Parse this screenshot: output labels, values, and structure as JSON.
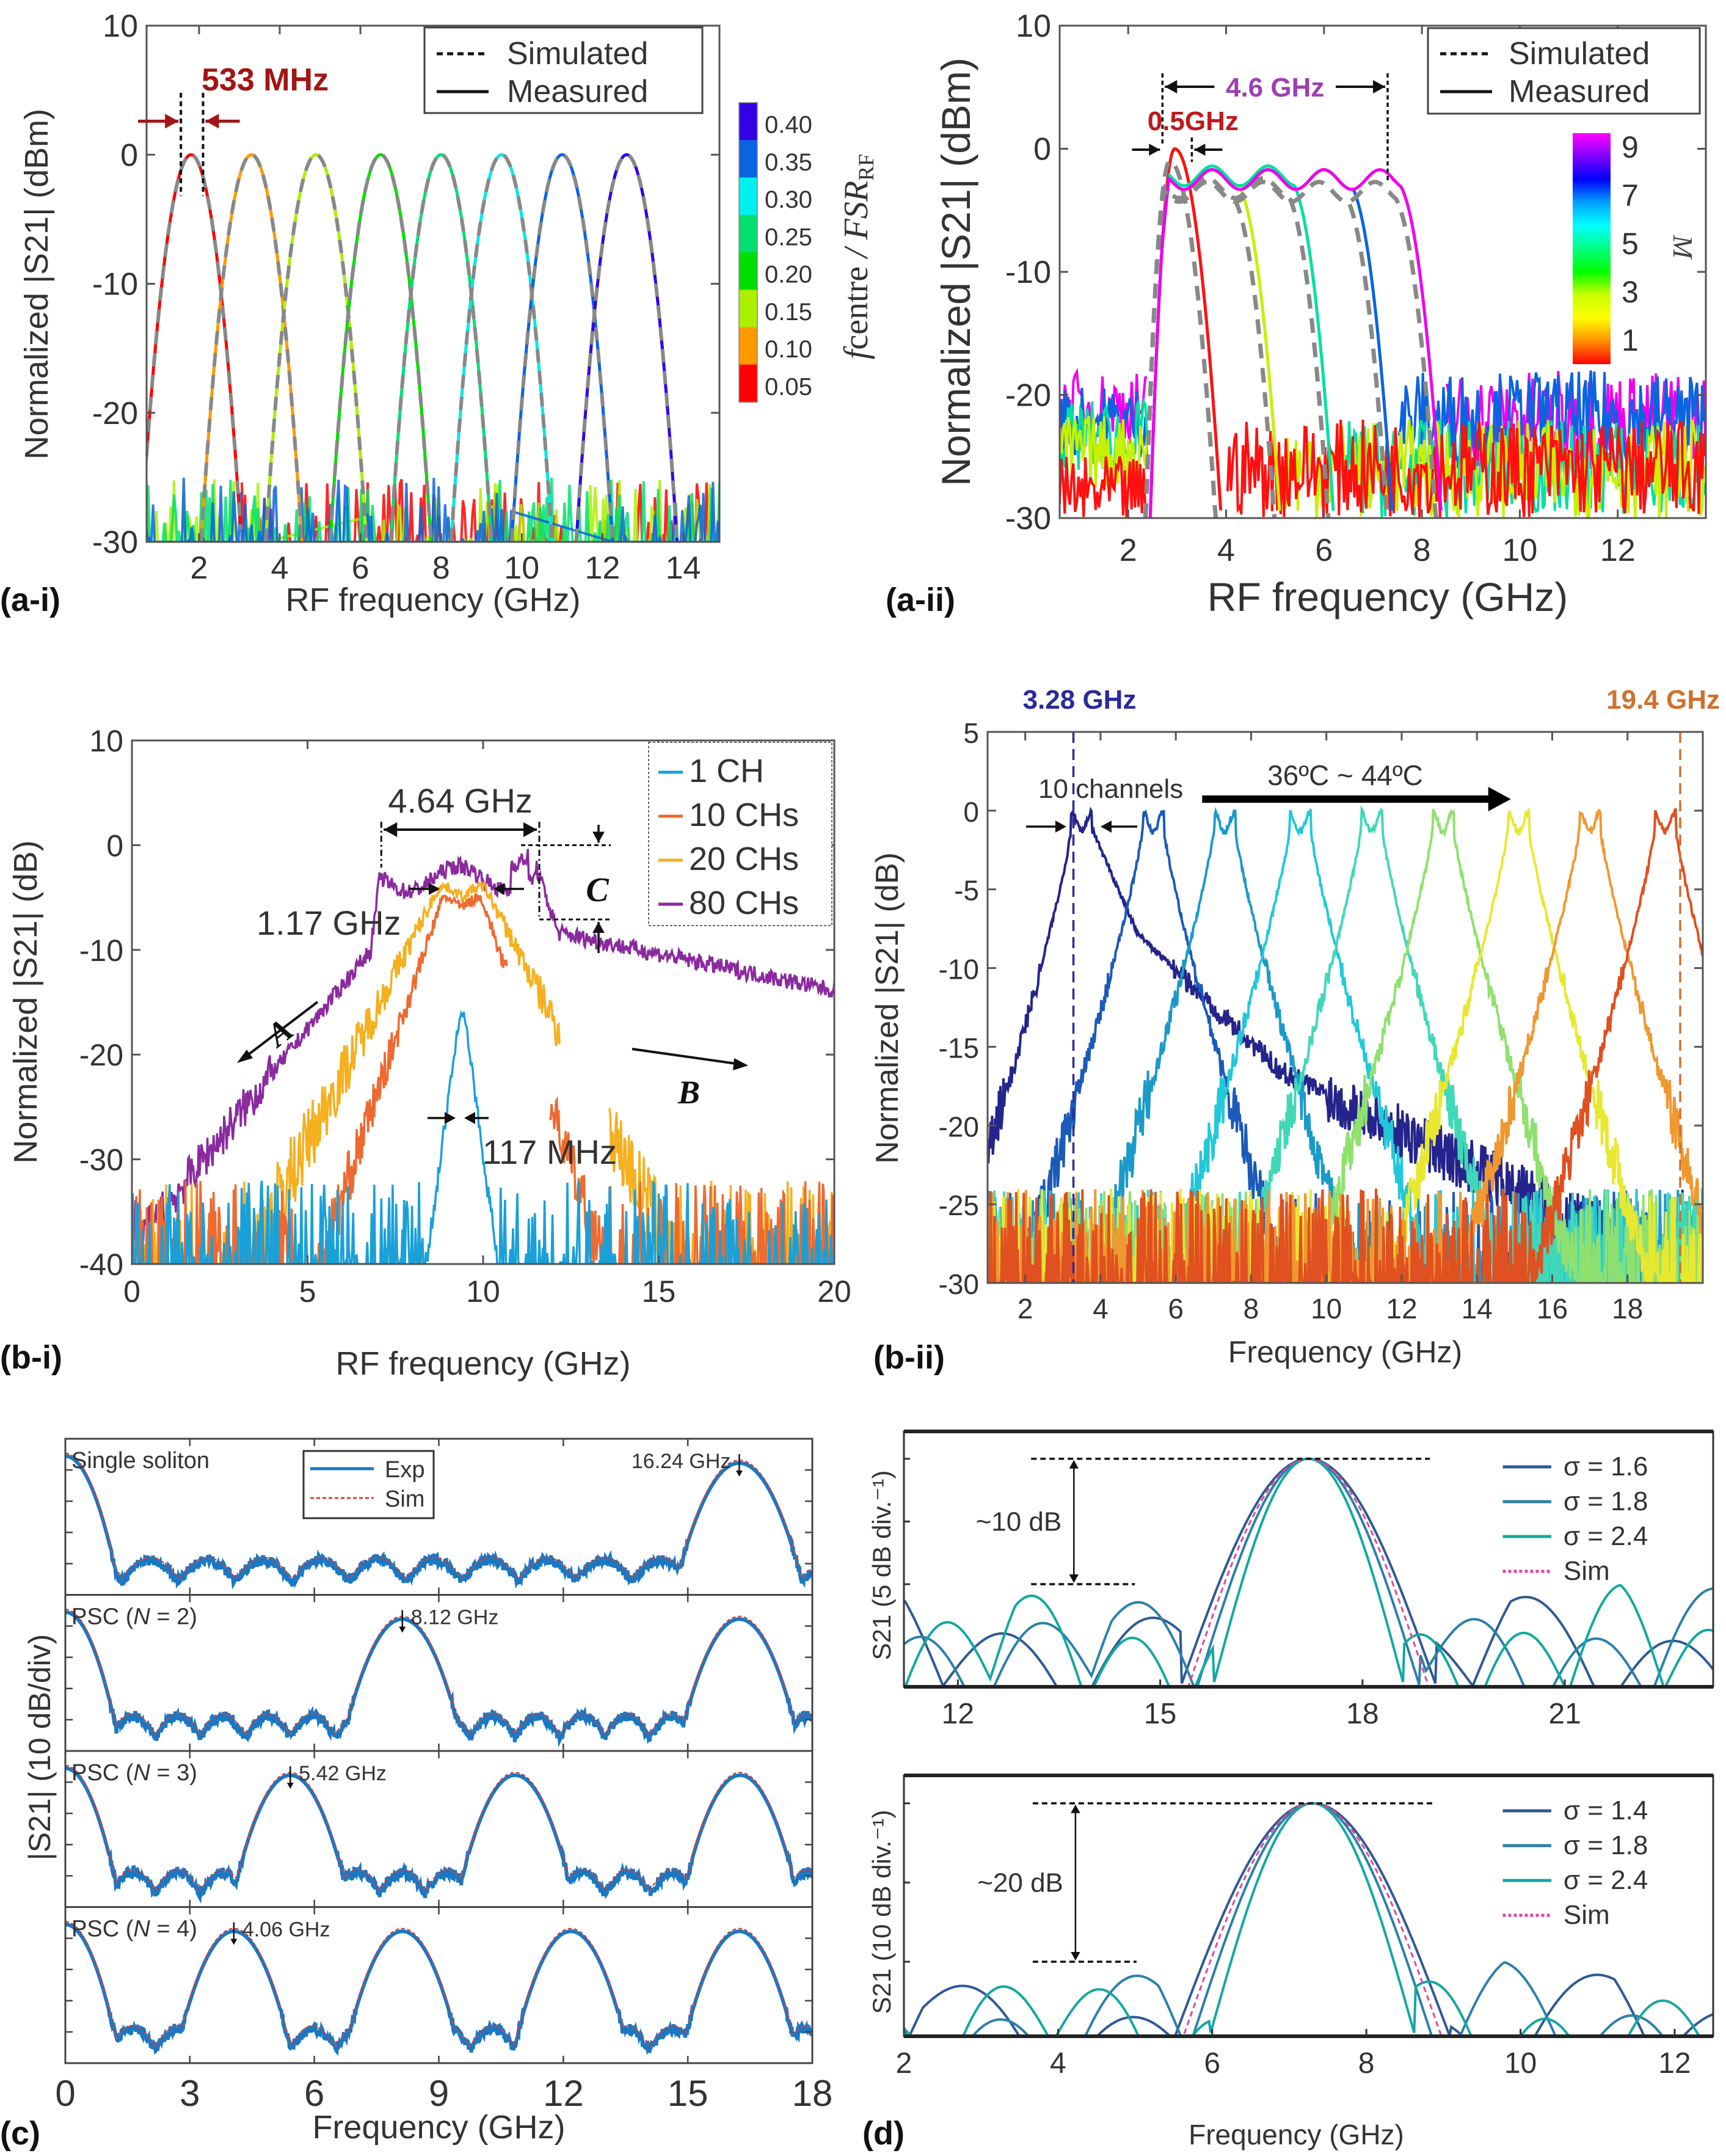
{
  "chart_data": [
    {
      "id": "a-i",
      "type": "line",
      "panel_label": "(a-i)",
      "xlabel": "RF frequency (GHz)",
      "ylabel": "Normalized |S21| (dBm)",
      "xlim": [
        0.7,
        14.9
      ],
      "ylim": [
        -30,
        10
      ],
      "xticks": [
        2,
        4,
        6,
        8,
        10,
        12,
        14
      ],
      "yticks": [
        10,
        0,
        -10,
        -20,
        -30
      ],
      "legend": {
        "position": "top-right",
        "entries": [
          {
            "label": "Simulated",
            "style": "dashed"
          },
          {
            "label": "Measured",
            "style": "solid"
          }
        ]
      },
      "annotation": {
        "text": "533 MHz",
        "color": "#a31515",
        "from": 1.55,
        "to": 2.1
      },
      "colorbar": {
        "label": "f_centre / FSR_RF",
        "label_main": "f",
        "label_sub": "centre",
        "label_rest": " / FSR",
        "label_rest_sub": "RF",
        "ticks": [
          "0.40",
          "0.35",
          "0.30",
          "0.25",
          "0.20",
          "0.15",
          "0.10",
          "0.05"
        ],
        "colors": [
          "#3300e6",
          "#0a64e0",
          "#00f0f0",
          "#00e070",
          "#00dd00",
          "#aaf000",
          "#ff9900",
          "#ff0000"
        ]
      },
      "series": [
        {
          "name": "0.05",
          "center": 1.8,
          "color": "#ff0000"
        },
        {
          "name": "0.10",
          "center": 3.3,
          "color": "#ff9900"
        },
        {
          "name": "0.15",
          "center": 4.9,
          "color": "#aaf000"
        },
        {
          "name": "0.20",
          "center": 6.5,
          "color": "#00dd00"
        },
        {
          "name": "0.25",
          "center": 8.0,
          "color": "#00e070"
        },
        {
          "name": "0.30",
          "center": 9.5,
          "color": "#00e8e8"
        },
        {
          "name": "0.35",
          "center": 11.0,
          "color": "#0a64e0"
        },
        {
          "name": "0.40",
          "center": 12.6,
          "color": "#3300e6"
        }
      ],
      "peak_db": 0,
      "half_width_ghz_at_-30dB": 1.25
    },
    {
      "id": "a-ii",
      "type": "line",
      "panel_label": "(a-ii)",
      "xlabel": "RF frequency (GHz)",
      "ylabel": "Normalized |S21| (dBm)",
      "xlim": [
        0.6,
        13.8
      ],
      "ylim": [
        -30,
        10
      ],
      "xticks": [
        2,
        4,
        6,
        8,
        10,
        12
      ],
      "yticks": [
        10,
        0,
        -10,
        -20,
        -30
      ],
      "legend": {
        "position": "top-right",
        "entries": [
          {
            "label": "Simulated",
            "style": "dashed"
          },
          {
            "label": "Measured",
            "style": "solid"
          }
        ]
      },
      "annotations": [
        {
          "text": "4.6 GHz",
          "color": "#9b3fb5",
          "from": 2.7,
          "to": 7.3
        },
        {
          "text": "0.5GHz",
          "color": "#c0181e",
          "from": 2.7,
          "to": 3.3
        }
      ],
      "colorbar": {
        "label": "M",
        "ticks": [
          "9",
          "7",
          "5",
          "3",
          "1"
        ],
        "colors": [
          "#ff00ff",
          "#8000ff",
          "#0000ff",
          "#00a0ff",
          "#00ffff",
          "#00ff80",
          "#00ff00",
          "#c8ff00",
          "#ffff00",
          "#ff9000",
          "#ff0000"
        ]
      },
      "series": [
        {
          "name": "M=1",
          "left_edge": 2.45,
          "right_edge": 3.9,
          "top_db": 0,
          "color": "#ff1010"
        },
        {
          "name": "M=3",
          "left_edge": 2.45,
          "right_edge": 5.1,
          "top_db": -2.5,
          "color": "#c8f000"
        },
        {
          "name": "M=5",
          "left_edge": 2.45,
          "right_edge": 6.2,
          "top_db": -2.2,
          "color": "#00e0a0"
        },
        {
          "name": "M=7",
          "left_edge": 2.45,
          "right_edge": 7.4,
          "top_db": -2.5,
          "color": "#0a64e0"
        },
        {
          "name": "M=9",
          "left_edge": 2.45,
          "right_edge": 8.4,
          "top_db": -2.5,
          "color": "#ee00ee"
        }
      ]
    },
    {
      "id": "b-i",
      "type": "line",
      "panel_label": "(b-i)",
      "xlabel": "RF frequency (GHz)",
      "ylabel": "Normalized |S21| (dB)",
      "xlim": [
        0,
        20
      ],
      "ylim": [
        -40,
        10
      ],
      "xticks": [
        0,
        5,
        10,
        15,
        20
      ],
      "yticks": [
        10,
        0,
        -10,
        -20,
        -30,
        -40
      ],
      "legend": {
        "position": "top-right",
        "entries": [
          {
            "label": "1  CH",
            "color": "#1aa0d8"
          },
          {
            "label": "10 CHs",
            "color": "#ee6a30"
          },
          {
            "label": "20 CHs",
            "color": "#f5b020"
          },
          {
            "label": "80 CHs",
            "color": "#8a2a9e"
          }
        ]
      },
      "annotations": [
        {
          "text": "4.64 GHz"
        },
        {
          "text": "1.17 GHz"
        },
        {
          "text": "117 MHz"
        },
        {
          "text": "A"
        },
        {
          "text": "B"
        },
        {
          "text": "C"
        }
      ],
      "series": [
        {
          "name": "1 CH",
          "center": 9.4,
          "flat_half": 0.06,
          "top_db": -16,
          "slope_db_per_ghz": 25,
          "floor_db": -40,
          "color": "#1aa0d8"
        },
        {
          "name": "10 CHs",
          "center": 9.4,
          "flat_half": 0.55,
          "top_db": -5,
          "slope_db_per_ghz": 10,
          "floor_db": -40,
          "color": "#ee6a30"
        },
        {
          "name": "20 CHs",
          "center": 9.4,
          "flat_half": 0.65,
          "top_db": -4,
          "slope_db_per_ghz": 6.5,
          "floor_db": -40,
          "color": "#f5b020"
        },
        {
          "name": "80 CHs",
          "center": 9.3,
          "flat_half": 2.2,
          "top_db": -2,
          "slope_db_per_ghz": 6,
          "floor_db": -40,
          "color": "#8a2a9e"
        }
      ]
    },
    {
      "id": "b-ii",
      "type": "line",
      "panel_label": "(b-ii)",
      "xlabel": "Frequency (GHz)",
      "ylabel": "Normalized |S21| (dB)",
      "xlim": [
        1,
        20
      ],
      "ylim": [
        -30,
        5
      ],
      "xticks": [
        2,
        4,
        6,
        8,
        10,
        12,
        14,
        16,
        18
      ],
      "yticks": [
        5,
        0,
        -5,
        -10,
        -15,
        -20,
        -25,
        -30
      ],
      "annotations": [
        {
          "text": "3.28 GHz",
          "x": 3.28,
          "color": "#2a2a9a"
        },
        {
          "text": "19.4 GHz",
          "x": 19.4,
          "color": "#d07030"
        },
        {
          "text": "10 channels"
        },
        {
          "text": "36ºC ~ 44ºC"
        }
      ],
      "series": [
        {
          "center": 3.5,
          "color": "#24248c"
        },
        {
          "center": 5.4,
          "color": "#1a5ab8"
        },
        {
          "center": 7.3,
          "color": "#1a9ac8"
        },
        {
          "center": 9.3,
          "color": "#22c8d8"
        },
        {
          "center": 11.2,
          "color": "#40d8b8"
        },
        {
          "center": 13.1,
          "color": "#90e070"
        },
        {
          "center": 15.1,
          "color": "#e8e830"
        },
        {
          "center": 17.0,
          "color": "#f09830"
        },
        {
          "center": 19.0,
          "color": "#e05020"
        }
      ]
    },
    {
      "id": "c",
      "type": "line",
      "panel_label": "(c)",
      "xlabel": "Frequency (GHz)",
      "ylabel": "|S21| (10 dB/div)",
      "xlim": [
        0,
        18
      ],
      "xticks": [
        0,
        3,
        6,
        9,
        12,
        15,
        18
      ],
      "legend": {
        "position": "top-center",
        "entries": [
          {
            "label": "Exp",
            "color": "#1a78c2"
          },
          {
            "label": "Sim",
            "color": "#d04040",
            "style": "dashed"
          }
        ]
      },
      "subplots": [
        {
          "title": "Single soliton",
          "marker_text": "16.24 GHz",
          "marker_x": 16.24,
          "peaks": [
            0,
            16.24
          ]
        },
        {
          "title": "PSC (N = 2)",
          "title_pre": "PSC (",
          "title_var": "N",
          "title_post": " = 2)",
          "marker_text": "8.12 GHz",
          "marker_x": 8.12,
          "peaks": [
            0,
            8.12,
            16.24
          ]
        },
        {
          "title": "PSC (N = 3)",
          "title_pre": "PSC (",
          "title_var": "N",
          "title_post": " = 3)",
          "marker_text": "5.42 GHz",
          "marker_x": 5.42,
          "peaks": [
            0,
            5.42,
            10.84,
            16.26
          ]
        },
        {
          "title": "PSC (N = 4)",
          "title_pre": "PSC (",
          "title_var": "N",
          "title_post": " = 4)",
          "marker_text": "4.06 GHz",
          "marker_x": 4.06,
          "peaks": [
            0,
            4.06,
            8.12,
            12.18,
            16.24
          ]
        }
      ]
    },
    {
      "id": "d-top",
      "type": "line",
      "xlabel": "",
      "ylabel": "S21 (5 dB div.⁻¹)",
      "xlim": [
        11.2,
        23.2
      ],
      "xticks": [
        12,
        15,
        18,
        21
      ],
      "annotation": {
        "text": "~10 dB"
      },
      "legend": {
        "position": "top-right",
        "entries": [
          {
            "label": "σ = 1.6",
            "color": "#2e5a94"
          },
          {
            "label": "σ = 1.8",
            "color": "#2c80a8"
          },
          {
            "label": "σ = 2.4",
            "color": "#12a8a0"
          },
          {
            "label": "Sim",
            "color": "#e0479a",
            "style": "dashed"
          }
        ]
      },
      "center": 17.2
    },
    {
      "id": "d-bottom",
      "type": "line",
      "panel_label": "(d)",
      "xlabel": "Frequency (GHz)",
      "ylabel": "S21 (10 dB div.⁻¹)",
      "xlim": [
        2,
        12.5
      ],
      "xticks": [
        2,
        4,
        6,
        8,
        10,
        12
      ],
      "annotation": {
        "text": "~20 dB"
      },
      "legend": {
        "position": "top-right",
        "entries": [
          {
            "label": "σ = 1.4",
            "color": "#2e5a94"
          },
          {
            "label": "σ = 1.8",
            "color": "#2c80a8"
          },
          {
            "label": "σ = 2.4",
            "color": "#12a8a0"
          },
          {
            "label": "Sim",
            "color": "#e0479a",
            "style": "dashed"
          }
        ]
      },
      "center": 7.3
    }
  ]
}
